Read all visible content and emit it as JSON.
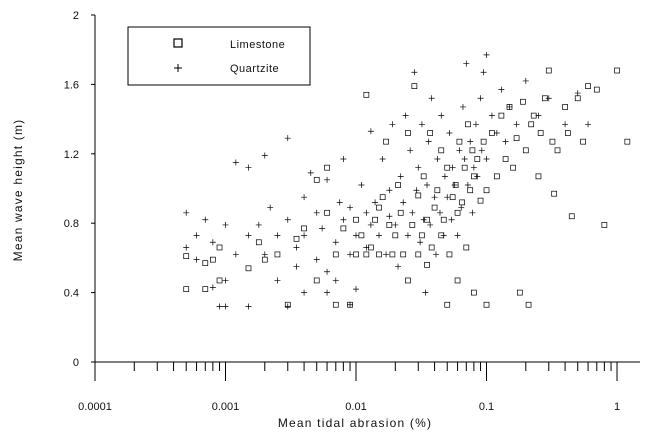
{
  "chart_data": {
    "type": "scatter",
    "xlabel": "Mean tidal abrasion (%)",
    "ylabel": "Mean wave height (m)",
    "xscale": "log",
    "xlim": [
      0.0001,
      1.5
    ],
    "ylim": [
      0,
      2
    ],
    "x_tick_labels": [
      "0.0001",
      "0.001",
      "0.01",
      "0.1",
      "1"
    ],
    "y_tick_labels": [
      "0",
      "0.4",
      "0.8",
      "1.2",
      "1.6",
      "2"
    ],
    "grid": false,
    "legend_position": "top-left",
    "series": [
      {
        "name": "Limestone",
        "marker": "square",
        "points": [
          [
            0.0005,
            0.61
          ],
          [
            0.0005,
            0.42
          ],
          [
            0.0007,
            0.42
          ],
          [
            0.0007,
            0.57
          ],
          [
            0.0008,
            0.59
          ],
          [
            0.0009,
            0.47
          ],
          [
            0.0009,
            0.66
          ],
          [
            0.0015,
            0.54
          ],
          [
            0.0018,
            0.69
          ],
          [
            0.002,
            0.59
          ],
          [
            0.0025,
            0.62
          ],
          [
            0.003,
            0.33
          ],
          [
            0.0035,
            0.71
          ],
          [
            0.004,
            0.77
          ],
          [
            0.005,
            1.05
          ],
          [
            0.005,
            0.47
          ],
          [
            0.006,
            0.86
          ],
          [
            0.006,
            1.12
          ],
          [
            0.007,
            0.62
          ],
          [
            0.007,
            0.33
          ],
          [
            0.008,
            0.77
          ],
          [
            0.009,
            0.33
          ],
          [
            0.01,
            0.62
          ],
          [
            0.01,
            0.82
          ],
          [
            0.011,
            0.73
          ],
          [
            0.012,
            1.54
          ],
          [
            0.012,
            0.62
          ],
          [
            0.013,
            0.66
          ],
          [
            0.014,
            0.82
          ],
          [
            0.015,
            0.89
          ],
          [
            0.015,
            0.62
          ],
          [
            0.016,
            0.95
          ],
          [
            0.017,
            1.27
          ],
          [
            0.018,
            0.79
          ],
          [
            0.019,
            0.62
          ],
          [
            0.02,
            0.73
          ],
          [
            0.021,
            1.02
          ],
          [
            0.022,
            0.86
          ],
          [
            0.023,
            0.62
          ],
          [
            0.025,
            1.32
          ],
          [
            0.025,
            0.47
          ],
          [
            0.027,
            0.79
          ],
          [
            0.028,
            1.59
          ],
          [
            0.03,
            0.62
          ],
          [
            0.03,
            0.96
          ],
          [
            0.032,
            0.73
          ],
          [
            0.033,
            1.07
          ],
          [
            0.035,
            0.82
          ],
          [
            0.035,
            0.56
          ],
          [
            0.037,
            1.32
          ],
          [
            0.038,
            0.66
          ],
          [
            0.04,
            0.89
          ],
          [
            0.042,
            0.99
          ],
          [
            0.045,
            0.73
          ],
          [
            0.045,
            1.22
          ],
          [
            0.047,
            0.82
          ],
          [
            0.05,
            0.33
          ],
          [
            0.05,
            1.12
          ],
          [
            0.052,
            0.62
          ],
          [
            0.055,
            0.95
          ],
          [
            0.058,
            1.02
          ],
          [
            0.06,
            0.47
          ],
          [
            0.06,
            0.86
          ],
          [
            0.062,
            1.27
          ],
          [
            0.065,
            0.92
          ],
          [
            0.068,
            1.12
          ],
          [
            0.07,
            0.66
          ],
          [
            0.072,
            1.37
          ],
          [
            0.075,
            0.99
          ],
          [
            0.078,
            1.22
          ],
          [
            0.08,
            0.4
          ],
          [
            0.08,
            1.07
          ],
          [
            0.085,
            1.17
          ],
          [
            0.09,
            0.93
          ],
          [
            0.095,
            1.27
          ],
          [
            0.1,
            0.33
          ],
          [
            0.1,
            0.99
          ],
          [
            0.11,
            1.32
          ],
          [
            0.12,
            1.07
          ],
          [
            0.13,
            1.42
          ],
          [
            0.14,
            1.17
          ],
          [
            0.15,
            1.47
          ],
          [
            0.16,
            1.12
          ],
          [
            0.17,
            1.29
          ],
          [
            0.18,
            0.4
          ],
          [
            0.19,
            1.5
          ],
          [
            0.2,
            1.22
          ],
          [
            0.21,
            0.33
          ],
          [
            0.22,
            1.37
          ],
          [
            0.23,
            1.42
          ],
          [
            0.25,
            1.07
          ],
          [
            0.26,
            1.32
          ],
          [
            0.28,
            1.52
          ],
          [
            0.3,
            1.68
          ],
          [
            0.32,
            1.27
          ],
          [
            0.33,
            0.97
          ],
          [
            0.35,
            1.22
          ],
          [
            0.4,
            1.47
          ],
          [
            0.42,
            1.32
          ],
          [
            0.45,
            0.84
          ],
          [
            0.5,
            1.52
          ],
          [
            0.55,
            1.27
          ],
          [
            0.6,
            1.59
          ],
          [
            0.7,
            1.57
          ],
          [
            0.8,
            0.79
          ],
          [
            1.0,
            1.68
          ],
          [
            1.2,
            1.27
          ]
        ]
      },
      {
        "name": "Quartzite",
        "marker": "plus",
        "points": [
          [
            0.0005,
            0.86
          ],
          [
            0.0005,
            0.66
          ],
          [
            0.0006,
            0.73
          ],
          [
            0.0006,
            0.59
          ],
          [
            0.0007,
            0.82
          ],
          [
            0.0008,
            0.43
          ],
          [
            0.0008,
            0.69
          ],
          [
            0.0009,
            0.32
          ],
          [
            0.001,
            0.32
          ],
          [
            0.001,
            0.79
          ],
          [
            0.001,
            0.47
          ],
          [
            0.0012,
            0.62
          ],
          [
            0.0012,
            1.15
          ],
          [
            0.0015,
            0.73
          ],
          [
            0.0015,
            1.12
          ],
          [
            0.0018,
            0.79
          ],
          [
            0.002,
            0.62
          ],
          [
            0.002,
            1.19
          ],
          [
            0.0022,
            0.89
          ],
          [
            0.0025,
            0.73
          ],
          [
            0.0025,
            0.47
          ],
          [
            0.003,
            0.82
          ],
          [
            0.003,
            1.29
          ],
          [
            0.0035,
            0.66
          ],
          [
            0.0035,
            0.55
          ],
          [
            0.004,
            0.95
          ],
          [
            0.004,
            0.73
          ],
          [
            0.0045,
            1.09
          ],
          [
            0.005,
            0.59
          ],
          [
            0.005,
            0.86
          ],
          [
            0.0055,
            0.77
          ],
          [
            0.006,
            1.05
          ],
          [
            0.006,
            0.52
          ],
          [
            0.007,
            0.69
          ],
          [
            0.0075,
            0.92
          ],
          [
            0.008,
            0.82
          ],
          [
            0.008,
            1.17
          ],
          [
            0.009,
            0.62
          ],
          [
            0.009,
            0.89
          ],
          [
            0.01,
            0.73
          ],
          [
            0.01,
            0.42
          ],
          [
            0.011,
            1.02
          ],
          [
            0.012,
            0.86
          ],
          [
            0.012,
            0.66
          ],
          [
            0.013,
            0.79
          ],
          [
            0.013,
            1.33
          ],
          [
            0.014,
            0.92
          ],
          [
            0.015,
            0.73
          ],
          [
            0.016,
            1.17
          ],
          [
            0.017,
            0.62
          ],
          [
            0.018,
            0.99
          ],
          [
            0.018,
            0.84
          ],
          [
            0.019,
            1.37
          ],
          [
            0.02,
            0.79
          ],
          [
            0.021,
            0.55
          ],
          [
            0.022,
            1.07
          ],
          [
            0.023,
            0.92
          ],
          [
            0.024,
            1.42
          ],
          [
            0.025,
            0.73
          ],
          [
            0.026,
            1.22
          ],
          [
            0.027,
            0.86
          ],
          [
            0.028,
            1.67
          ],
          [
            0.029,
            0.99
          ],
          [
            0.03,
            1.12
          ],
          [
            0.031,
            0.69
          ],
          [
            0.032,
            1.37
          ],
          [
            0.033,
            0.82
          ],
          [
            0.034,
            0.4
          ],
          [
            0.035,
            1.02
          ],
          [
            0.036,
            1.27
          ],
          [
            0.037,
            0.79
          ],
          [
            0.038,
            1.52
          ],
          [
            0.04,
            0.95
          ],
          [
            0.041,
            0.62
          ],
          [
            0.042,
            1.17
          ],
          [
            0.044,
            0.86
          ],
          [
            0.045,
            1.42
          ],
          [
            0.047,
            0.73
          ],
          [
            0.048,
            1.07
          ],
          [
            0.05,
            0.95
          ],
          [
            0.052,
            1.32
          ],
          [
            0.054,
            0.82
          ],
          [
            0.055,
            1.12
          ],
          [
            0.057,
            1.02
          ],
          [
            0.06,
            0.73
          ],
          [
            0.062,
            1.22
          ],
          [
            0.064,
            0.89
          ],
          [
            0.066,
            1.47
          ],
          [
            0.068,
            1.17
          ],
          [
            0.07,
            1.72
          ],
          [
            0.072,
            1.02
          ],
          [
            0.075,
            1.27
          ],
          [
            0.078,
            0.86
          ],
          [
            0.08,
            1.12
          ],
          [
            0.083,
            1.37
          ],
          [
            0.085,
            1.07
          ],
          [
            0.09,
            1.52
          ],
          [
            0.092,
            1.22
          ],
          [
            0.095,
            1.67
          ],
          [
            0.1,
            1.77
          ],
          [
            0.1,
            1.17
          ],
          [
            0.11,
            1.42
          ],
          [
            0.12,
            1.32
          ],
          [
            0.13,
            1.57
          ],
          [
            0.14,
            1.27
          ],
          [
            0.15,
            1.47
          ],
          [
            0.17,
            1.37
          ],
          [
            0.2,
            1.62
          ],
          [
            0.25,
            1.42
          ],
          [
            0.3,
            1.52
          ],
          [
            0.4,
            1.37
          ],
          [
            0.5,
            1.55
          ],
          [
            0.6,
            1.37
          ],
          [
            0.0015,
            0.32
          ],
          [
            0.003,
            0.32
          ],
          [
            0.004,
            0.4
          ],
          [
            0.006,
            0.4
          ],
          [
            0.007,
            0.47
          ],
          [
            0.009,
            0.33
          ]
        ]
      }
    ]
  }
}
